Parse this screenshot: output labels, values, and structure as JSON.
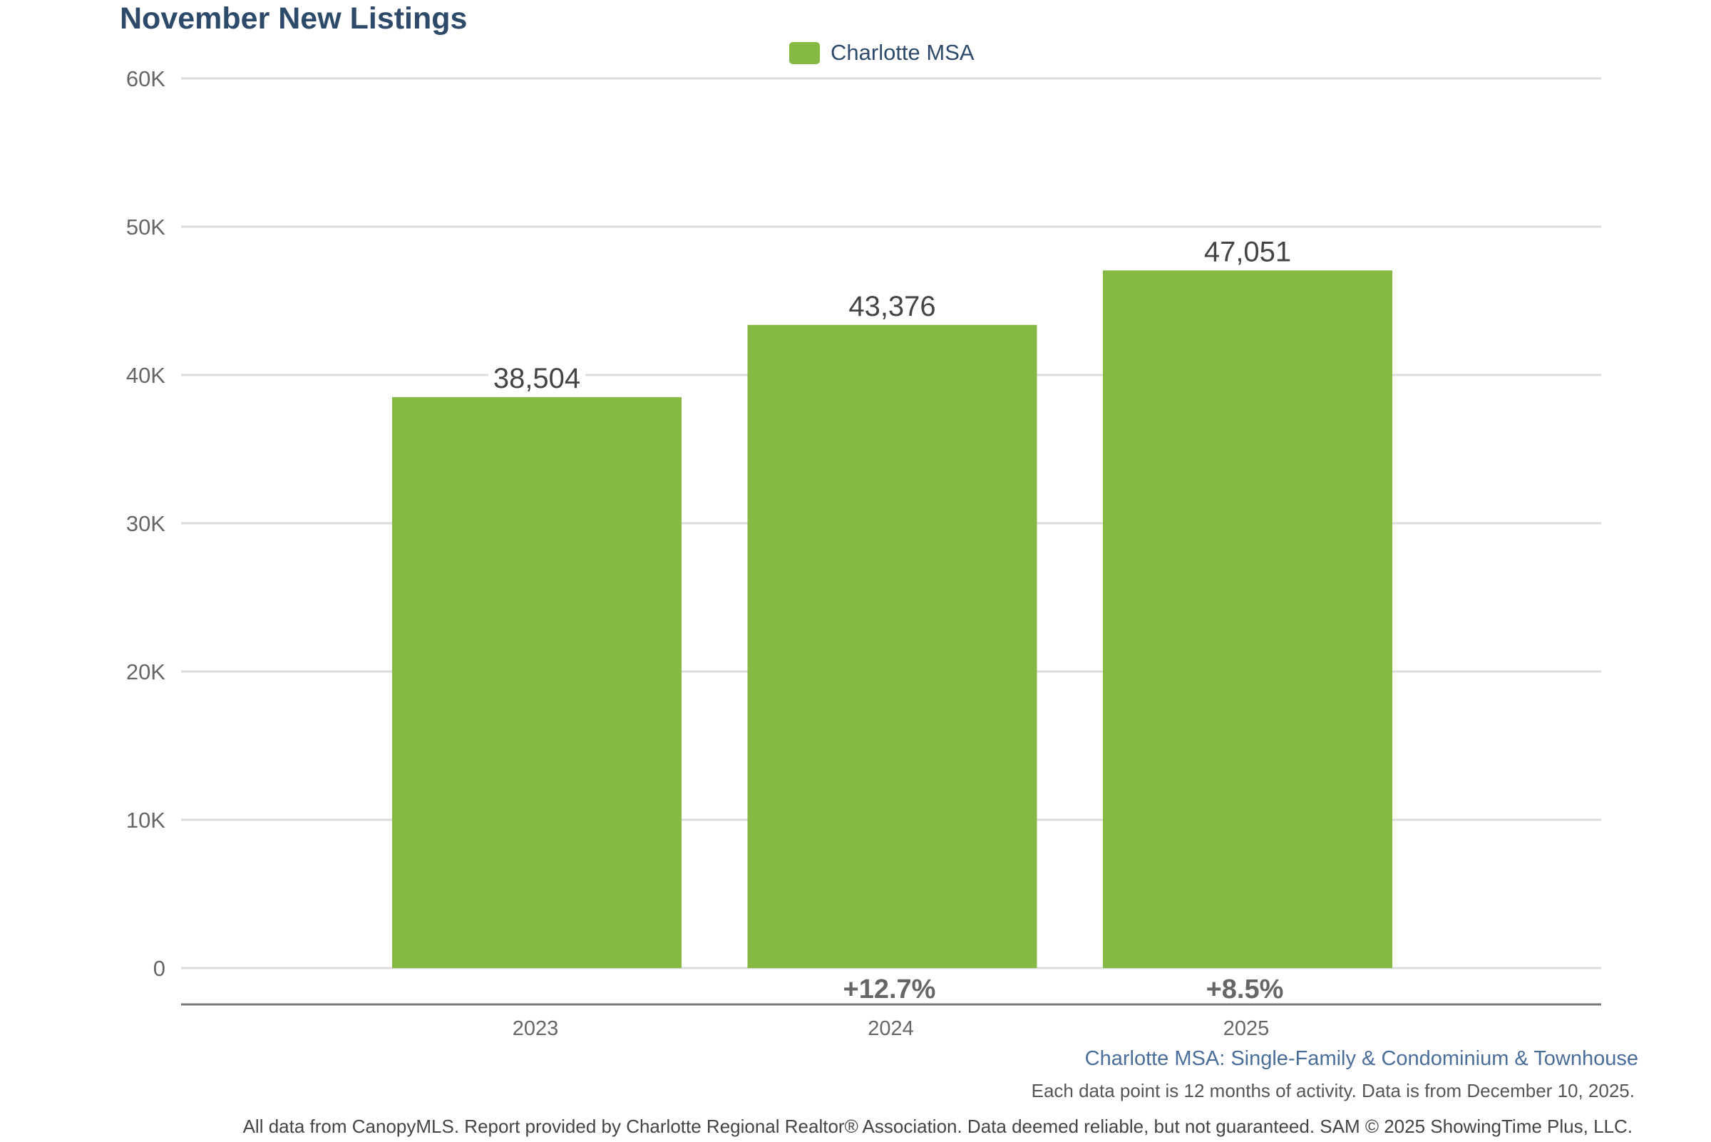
{
  "title": "November New Listings",
  "legend": [
    {
      "label": "Charlotte MSA",
      "color": "#86b943"
    }
  ],
  "subtitle": "Charlotte MSA: Single-Family & Condominium & Townhouse",
  "note": "Each data point is 12 months of activity. Data is from December 10, 2025.",
  "footer": "All data from CanopyMLS. Report provided by Charlotte Regional Realtor® Association. Data deemed reliable, but not guaranteed. SAM © 2025 ShowingTime Plus, LLC.",
  "chart_data": {
    "type": "bar",
    "title": "November New Listings",
    "xlabel": "",
    "ylabel": "",
    "categories": [
      "2023",
      "2024",
      "2025"
    ],
    "series": [
      {
        "name": "Charlotte MSA",
        "color": "#86b943",
        "values": [
          38504,
          43376,
          47051
        ]
      }
    ],
    "data_labels": [
      "38,504",
      "43,376",
      "47,051"
    ],
    "change_labels": [
      "",
      "+12.7%",
      "+8.5%"
    ],
    "ylim": [
      0,
      60000
    ],
    "yticks": [
      0,
      10000,
      20000,
      30000,
      40000,
      50000,
      60000
    ],
    "ytick_labels": [
      "0",
      "10K",
      "20K",
      "30K",
      "40K",
      "50K",
      "60K"
    ],
    "grid": true,
    "legend_position": "top-center"
  }
}
